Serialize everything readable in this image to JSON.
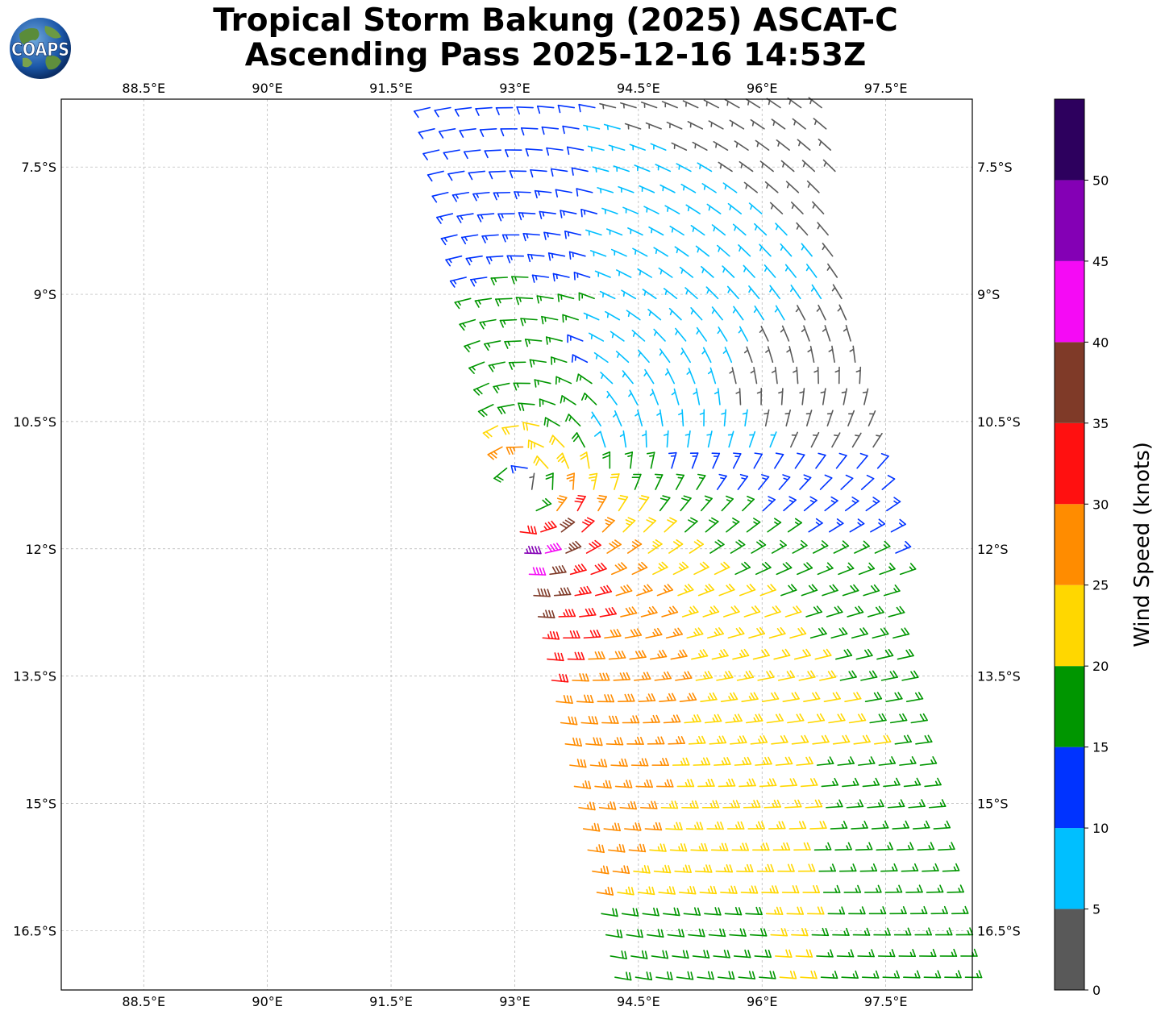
{
  "title": {
    "line1": "Tropical Storm Bakung (2025) ASCAT-C",
    "line2": "Ascending Pass 2025-12-16 14:53Z"
  },
  "logo": {
    "text": "COAPS",
    "icon": "globe-logo-icon"
  },
  "map": {
    "lon_range": [
      87.5,
      98.55
    ],
    "lat_range": [
      -17.2,
      -6.7
    ],
    "gridlines": true,
    "x_ticks": [
      {
        "value": 88.5,
        "label": "88.5°E"
      },
      {
        "value": 90.0,
        "label": "90°E"
      },
      {
        "value": 91.5,
        "label": "91.5°E"
      },
      {
        "value": 93.0,
        "label": "93°E"
      },
      {
        "value": 94.5,
        "label": "94.5°E"
      },
      {
        "value": 96.0,
        "label": "96°E"
      },
      {
        "value": 97.5,
        "label": "97.5°E"
      }
    ],
    "y_ticks": [
      {
        "value": -7.5,
        "label": "7.5°S"
      },
      {
        "value": -9.0,
        "label": "9°S"
      },
      {
        "value": -10.5,
        "label": "10.5°S"
      },
      {
        "value": -12.0,
        "label": "12°S"
      },
      {
        "value": -13.5,
        "label": "13.5°S"
      },
      {
        "value": -15.0,
        "label": "15°S"
      },
      {
        "value": -16.5,
        "label": "16.5°S"
      }
    ],
    "swath": {
      "description_free": true,
      "top_left": [
        91.9,
        -6.7
      ],
      "bottom_left": [
        94.2,
        -17.2
      ],
      "top_right": [
        96.8,
        -6.7
      ],
      "bottom_right": [
        98.55,
        -17.2
      ]
    },
    "storm_center": [
      93.05,
      -11.45
    ],
    "grid_spacing_deg": 0.25
  },
  "colorbar": {
    "title": "Wind Speed (knots)",
    "range": [
      0,
      55
    ],
    "bins": [
      {
        "min": 0,
        "max": 5,
        "color": "#595959"
      },
      {
        "min": 5,
        "max": 10,
        "color": "#00bfff"
      },
      {
        "min": 10,
        "max": 15,
        "color": "#0033ff"
      },
      {
        "min": 15,
        "max": 20,
        "color": "#009600"
      },
      {
        "min": 20,
        "max": 25,
        "color": "#ffd700"
      },
      {
        "min": 25,
        "max": 30,
        "color": "#ff8c00"
      },
      {
        "min": 30,
        "max": 35,
        "color": "#ff1010"
      },
      {
        "min": 35,
        "max": 40,
        "color": "#7f3a28"
      },
      {
        "min": 40,
        "max": 45,
        "color": "#f50af5"
      },
      {
        "min": 45,
        "max": 50,
        "color": "#8400b5"
      },
      {
        "min": 50,
        "max": 55,
        "color": "#2d005e"
      }
    ],
    "ticks": [
      "0",
      "5",
      "10",
      "15",
      "20",
      "25",
      "30",
      "35",
      "40",
      "45",
      "50"
    ]
  }
}
